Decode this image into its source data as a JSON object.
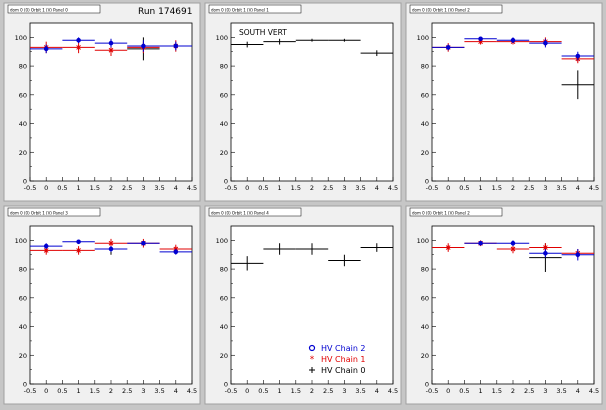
{
  "run_label": "Run 174691",
  "colors": {
    "chain0": "#000000",
    "chain1": "#e00000",
    "chain2": "#0000d0",
    "pad": "#f0f0f0",
    "frame": "#ffffff"
  },
  "legend": [
    {
      "key": "chain2",
      "marker": "circle",
      "label": "HV Chain 2"
    },
    {
      "key": "chain1",
      "marker": "star",
      "label": "HV Chain 1"
    },
    {
      "key": "chain0",
      "marker": "cross",
      "label": "HV Chain 0"
    }
  ],
  "chart_data": [
    {
      "type": "scatter",
      "title": "dom 0 (0) Orbit 1 (V) Panel 0",
      "annotation": "",
      "xlim": [
        -0.5,
        4.5
      ],
      "ylim": [
        0,
        110
      ],
      "xticks": [
        "-0.5",
        "0",
        "0.5",
        "1",
        "1.5",
        "2",
        "2.5",
        "3",
        "3.5",
        "4",
        "4.5"
      ],
      "yticks": [
        "0",
        "20",
        "40",
        "60",
        "80",
        "100"
      ],
      "series": [
        {
          "key": "chain2",
          "x": [
            0,
            1,
            2,
            3,
            4
          ],
          "y": [
            92,
            98,
            96,
            94,
            94
          ],
          "yerr": [
            3,
            2,
            3,
            4,
            3
          ]
        },
        {
          "key": "chain1",
          "x": [
            0,
            1,
            2,
            3,
            4
          ],
          "y": [
            93,
            93,
            91,
            93,
            94
          ],
          "yerr": [
            4,
            4,
            4,
            4,
            4
          ]
        },
        {
          "key": "chain0",
          "x": [
            3
          ],
          "y": [
            92
          ],
          "yerr": [
            8
          ]
        }
      ]
    },
    {
      "type": "scatter",
      "title": "dom 0 (0) Orbit 1 (V) Panel 1",
      "annotation": "SOUTH VERT",
      "xlim": [
        -0.5,
        4.5
      ],
      "ylim": [
        0,
        110
      ],
      "xticks": [
        "-0.5",
        "0",
        "0.5",
        "1",
        "1.5",
        "2",
        "2.5",
        "3",
        "3.5",
        "4",
        "4.5"
      ],
      "yticks": [
        "0",
        "20",
        "40",
        "60",
        "80",
        "100"
      ],
      "series": [
        {
          "key": "chain0",
          "x": [
            0,
            1,
            2,
            3,
            4
          ],
          "y": [
            95,
            97,
            98,
            98,
            89
          ],
          "yerr": [
            2,
            2,
            1,
            1,
            2
          ]
        }
      ]
    },
    {
      "type": "scatter",
      "title": "dom 0 (0) Orbit 1 (V) Panel 2",
      "annotation": "",
      "xlim": [
        -0.5,
        4.5
      ],
      "ylim": [
        0,
        110
      ],
      "xticks": [
        "-0.5",
        "0",
        "0.5",
        "1",
        "1.5",
        "2",
        "2.5",
        "3",
        "3.5",
        "4",
        "4.5"
      ],
      "yticks": [
        "0",
        "20",
        "40",
        "60",
        "80",
        "100"
      ],
      "series": [
        {
          "key": "chain2",
          "x": [
            0,
            1,
            2,
            3,
            4
          ],
          "y": [
            93,
            99,
            98,
            96,
            87
          ],
          "yerr": [
            2,
            1,
            2,
            3,
            3
          ]
        },
        {
          "key": "chain1",
          "x": [
            0,
            1,
            2,
            3,
            4
          ],
          "y": [
            93,
            97,
            97,
            97,
            85
          ],
          "yerr": [
            3,
            2,
            2,
            3,
            3
          ]
        },
        {
          "key": "chain0",
          "x": [
            4
          ],
          "y": [
            67
          ],
          "yerr": [
            10
          ]
        }
      ]
    },
    {
      "type": "scatter",
      "title": "dom 0 (0) Orbit 1 (V) Panel 3",
      "annotation": "",
      "xlim": [
        -0.5,
        4.5
      ],
      "ylim": [
        0,
        110
      ],
      "xticks": [
        "-0.5",
        "0",
        "0.5",
        "1",
        "1.5",
        "2",
        "2.5",
        "3",
        "3.5",
        "4",
        "4.5"
      ],
      "yticks": [
        "0",
        "20",
        "40",
        "60",
        "80",
        "100"
      ],
      "series": [
        {
          "key": "chain2",
          "x": [
            0,
            1,
            2,
            3,
            4
          ],
          "y": [
            96,
            99,
            94,
            98,
            92
          ],
          "yerr": [
            2,
            1,
            2,
            1,
            2
          ]
        },
        {
          "key": "chain1",
          "x": [
            0,
            1,
            2,
            3,
            4
          ],
          "y": [
            93,
            93,
            98,
            98,
            94
          ],
          "yerr": [
            3,
            3,
            3,
            3,
            3
          ]
        },
        {
          "key": "chain0",
          "x": [
            2
          ],
          "y": [
            94
          ],
          "yerr": [
            4
          ]
        }
      ]
    },
    {
      "type": "scatter",
      "title": "dom 0 (0) Orbit 1 (V) Panel 4",
      "annotation": "",
      "xlim": [
        -0.5,
        4.5
      ],
      "ylim": [
        0,
        110
      ],
      "xticks": [
        "-0.5",
        "0",
        "0.5",
        "1",
        "1.5",
        "2",
        "2.5",
        "3",
        "3.5",
        "4",
        "4.5"
      ],
      "yticks": [
        "0",
        "20",
        "40",
        "60",
        "80",
        "100"
      ],
      "series": [
        {
          "key": "chain0",
          "x": [
            0,
            1,
            2,
            3,
            4
          ],
          "y": [
            84,
            94,
            94,
            86,
            95
          ],
          "yerr": [
            5,
            4,
            4,
            4,
            3
          ]
        }
      ]
    },
    {
      "type": "scatter",
      "title": "dom 0 (0) Orbit 1 (V) Panel 2",
      "annotation": "",
      "xlim": [
        -0.5,
        4.5
      ],
      "ylim": [
        0,
        110
      ],
      "xticks": [
        "-0.5",
        "0",
        "0.5",
        "1",
        "1.5",
        "2",
        "2.5",
        "3",
        "3.5",
        "4",
        "4.5"
      ],
      "yticks": [
        "0",
        "20",
        "40",
        "60",
        "80",
        "100"
      ],
      "series": [
        {
          "key": "chain2",
          "x": [
            1,
            2,
            3,
            4
          ],
          "y": [
            98,
            98,
            91,
            90
          ],
          "yerr": [
            1,
            2,
            3,
            4
          ]
        },
        {
          "key": "chain1",
          "x": [
            0,
            1,
            2,
            3,
            4
          ],
          "y": [
            95,
            98,
            94,
            95,
            91
          ],
          "yerr": [
            3,
            2,
            3,
            3,
            3
          ]
        },
        {
          "key": "chain0",
          "x": [
            3
          ],
          "y": [
            88
          ],
          "yerr": [
            10
          ]
        }
      ]
    }
  ]
}
